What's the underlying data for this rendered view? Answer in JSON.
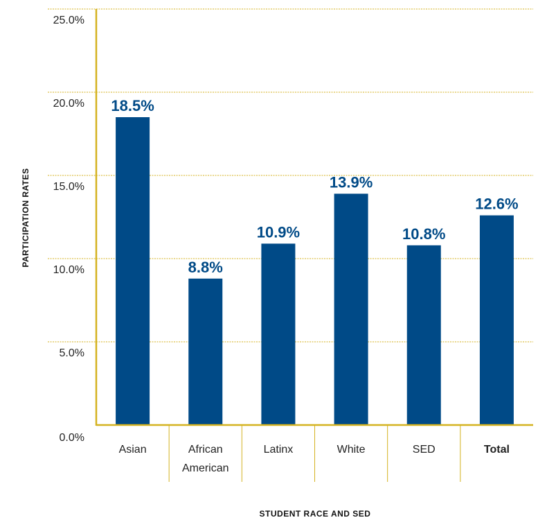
{
  "chart_data": {
    "type": "bar",
    "title": "",
    "xlabel": "STUDENT RACE AND SED",
    "ylabel": "PARTICIPATION RATES",
    "categories": [
      {
        "lines": [
          "Asian"
        ],
        "bold": false
      },
      {
        "lines": [
          "African",
          "American"
        ],
        "bold": false
      },
      {
        "lines": [
          "Latinx"
        ],
        "bold": false
      },
      {
        "lines": [
          "White"
        ],
        "bold": false
      },
      {
        "lines": [
          "SED"
        ],
        "bold": false
      },
      {
        "lines": [
          "Total"
        ],
        "bold": true
      }
    ],
    "values": [
      18.5,
      8.8,
      10.9,
      13.9,
      10.8,
      12.6
    ],
    "data_labels": [
      "18.5%",
      "8.8%",
      "10.9%",
      "13.9%",
      "10.8%",
      "12.6%"
    ],
    "ylim": [
      0,
      25
    ],
    "yticks": [
      0,
      5,
      10,
      15,
      20,
      25
    ],
    "ytick_labels": [
      "0.0%",
      "5.0%",
      "10.0%",
      "15.0%",
      "20.0%",
      "25.0%"
    ],
    "grid": true,
    "colors": {
      "bar": "#004a87",
      "label": "#004a87",
      "axis": "#d4b21f",
      "grid": "#d4b21f"
    }
  }
}
